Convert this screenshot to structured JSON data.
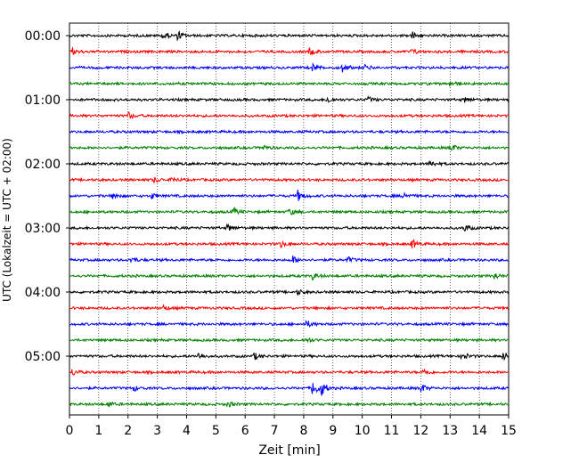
{
  "chart_data": {
    "type": "line",
    "xlabel": "Zeit  [min]",
    "ylabel": "UTC (Lokalzeit = UTC + 02:00)",
    "xlim": [
      0,
      15
    ],
    "x_ticks": [
      "0",
      "1",
      "2",
      "3",
      "4",
      "5",
      "6",
      "7",
      "8",
      "9",
      "10",
      "11",
      "12",
      "13",
      "14",
      "15"
    ],
    "y_tick_labels": [
      "00:00",
      "01:00",
      "02:00",
      "03:00",
      "04:00",
      "05:00"
    ],
    "grid": "vertical dotted lines at each minute",
    "trace_interval_min": 15,
    "trace_colors": [
      "#000000",
      "#ff0000",
      "#0000ff",
      "#008000"
    ],
    "traces": [
      {
        "start": "00:00",
        "color": "#000000",
        "events": [
          {
            "t": 3.2,
            "amp": 5
          },
          {
            "t": 3.7,
            "amp": 5
          },
          {
            "t": 11.7,
            "amp": 4
          }
        ]
      },
      {
        "start": "00:15",
        "color": "#ff0000",
        "events": [
          {
            "t": 0.1,
            "amp": 4
          },
          {
            "t": 8.2,
            "amp": 4
          },
          {
            "t": 11.7,
            "amp": 3
          }
        ]
      },
      {
        "start": "00:30",
        "color": "#0000ff",
        "events": [
          {
            "t": 8.3,
            "amp": 4
          },
          {
            "t": 9.3,
            "amp": 5
          },
          {
            "t": 10.1,
            "amp": 3
          }
        ]
      },
      {
        "start": "00:45",
        "color": "#008000",
        "events": [
          {
            "t": 13.0,
            "amp": 3
          }
        ]
      },
      {
        "start": "01:00",
        "color": "#000000",
        "events": [
          {
            "t": 8.8,
            "amp": 4
          },
          {
            "t": 10.2,
            "amp": 3
          },
          {
            "t": 13.5,
            "amp": 3
          }
        ]
      },
      {
        "start": "01:15",
        "color": "#ff0000",
        "events": [
          {
            "t": 2.0,
            "amp": 4
          }
        ]
      },
      {
        "start": "01:30",
        "color": "#0000ff",
        "events": []
      },
      {
        "start": "01:45",
        "color": "#008000",
        "events": [
          {
            "t": 6.6,
            "amp": 3
          },
          {
            "t": 13.0,
            "amp": 5
          }
        ]
      },
      {
        "start": "02:00",
        "color": "#000000",
        "events": [
          {
            "t": 12.3,
            "amp": 4
          }
        ]
      },
      {
        "start": "02:15",
        "color": "#ff0000",
        "events": [
          {
            "t": 2.9,
            "amp": 3
          },
          {
            "t": 3.5,
            "amp": 3
          }
        ]
      },
      {
        "start": "02:30",
        "color": "#0000ff",
        "events": [
          {
            "t": 1.5,
            "amp": 4
          },
          {
            "t": 2.8,
            "amp": 3
          },
          {
            "t": 7.8,
            "amp": 6
          },
          {
            "t": 11.4,
            "amp": 4
          }
        ]
      },
      {
        "start": "02:45",
        "color": "#008000",
        "events": [
          {
            "t": 5.6,
            "amp": 4
          },
          {
            "t": 7.5,
            "amp": 4
          }
        ]
      },
      {
        "start": "03:00",
        "color": "#000000",
        "events": [
          {
            "t": 5.4,
            "amp": 4
          },
          {
            "t": 13.5,
            "amp": 4
          }
        ]
      },
      {
        "start": "03:15",
        "color": "#ff0000",
        "events": [
          {
            "t": 7.2,
            "amp": 4
          },
          {
            "t": 11.7,
            "amp": 5
          }
        ]
      },
      {
        "start": "03:30",
        "color": "#0000ff",
        "events": [
          {
            "t": 2.1,
            "amp": 3
          },
          {
            "t": 7.6,
            "amp": 5
          },
          {
            "t": 9.5,
            "amp": 3
          }
        ]
      },
      {
        "start": "03:45",
        "color": "#008000",
        "events": [
          {
            "t": 8.3,
            "amp": 4
          },
          {
            "t": 14.5,
            "amp": 4
          }
        ]
      },
      {
        "start": "04:00",
        "color": "#000000",
        "events": [
          {
            "t": 7.8,
            "amp": 3
          }
        ]
      },
      {
        "start": "04:15",
        "color": "#ff0000",
        "events": [
          {
            "t": 3.2,
            "amp": 3
          }
        ]
      },
      {
        "start": "04:30",
        "color": "#0000ff",
        "events": [
          {
            "t": 8.1,
            "amp": 4
          }
        ]
      },
      {
        "start": "04:45",
        "color": "#008000",
        "events": [
          {
            "t": 8.1,
            "amp": 3
          }
        ]
      },
      {
        "start": "05:00",
        "color": "#000000",
        "events": [
          {
            "t": 4.4,
            "amp": 4
          },
          {
            "t": 6.3,
            "amp": 4
          },
          {
            "t": 13.4,
            "amp": 5
          },
          {
            "t": 14.8,
            "amp": 5
          }
        ]
      },
      {
        "start": "05:15",
        "color": "#ff0000",
        "events": [
          {
            "t": 0.1,
            "amp": 4
          },
          {
            "t": 12.1,
            "amp": 4
          }
        ]
      },
      {
        "start": "05:30",
        "color": "#0000ff",
        "events": [
          {
            "t": 2.2,
            "amp": 3
          },
          {
            "t": 8.3,
            "amp": 10
          },
          {
            "t": 8.6,
            "amp": 8
          },
          {
            "t": 12.0,
            "amp": 5
          }
        ]
      },
      {
        "start": "05:45",
        "color": "#008000",
        "events": [
          {
            "t": 1.3,
            "amp": 3
          },
          {
            "t": 5.4,
            "amp": 3
          }
        ]
      }
    ]
  }
}
